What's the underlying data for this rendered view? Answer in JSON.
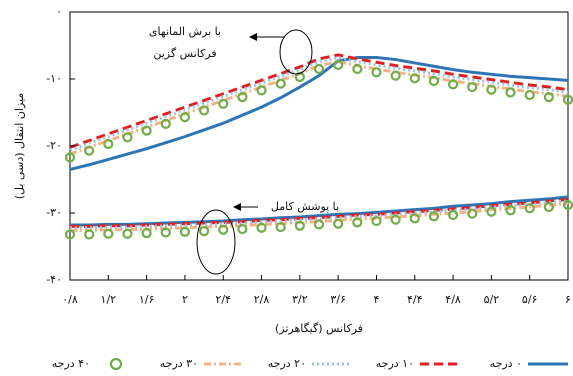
{
  "chart_data": {
    "type": "line",
    "xlabel": "فرکانس (گیگاهرتز)",
    "ylabel": "میزان انتقال (دسی بل)",
    "annotations": [
      "با برش المانهای",
      "فرکانس گزین",
      "با پوشش کامل"
    ],
    "x": [
      0.8,
      1.0,
      1.2,
      1.4,
      1.6,
      1.8,
      2.0,
      2.2,
      2.4,
      2.6,
      2.8,
      3.0,
      3.2,
      3.4,
      3.6,
      3.8,
      4.0,
      4.2,
      4.4,
      4.6,
      4.8,
      5.0,
      5.2,
      5.4,
      5.6,
      5.8,
      6.0
    ],
    "xlim": [
      0.8,
      6
    ],
    "xticks": [
      {
        "value": 0.8,
        "label": "۰/۸"
      },
      {
        "value": 1.2,
        "label": "۱/۲"
      },
      {
        "value": 1.6,
        "label": "۱/۶"
      },
      {
        "value": 2,
        "label": "۲"
      },
      {
        "value": 2.4,
        "label": "۲/۴"
      },
      {
        "value": 2.8,
        "label": "۲/۸"
      },
      {
        "value": 3.2,
        "label": "۳/۲"
      },
      {
        "value": 3.6,
        "label": "۳/۶"
      },
      {
        "value": 4,
        "label": "۴"
      },
      {
        "value": 4.4,
        "label": "۴/۴"
      },
      {
        "value": 4.8,
        "label": "۴/۸"
      },
      {
        "value": 5.2,
        "label": "۵/۲"
      },
      {
        "value": 5.6,
        "label": "۵/۶"
      },
      {
        "value": 6,
        "label": "۶"
      }
    ],
    "ylim": [
      -40,
      0
    ],
    "yticks": [
      {
        "value": 0,
        "label": "۰"
      },
      {
        "value": -10,
        "label": "-۱۰"
      },
      {
        "value": -20,
        "label": "-۲۰"
      },
      {
        "value": -30,
        "label": "-۳۰"
      },
      {
        "value": -40,
        "label": "-۴۰"
      }
    ],
    "series": [
      {
        "name": "۰ درجه",
        "color": "#2e75b6",
        "style": "solid",
        "values": [
          -23.5,
          -22.8,
          -22,
          -21.2,
          -20.4,
          -19.5,
          -18.6,
          -17.6,
          -16.6,
          -15.4,
          -14.2,
          -12.8,
          -11.2,
          -9.5,
          -7.3,
          -6.8,
          -6.8,
          -7.1,
          -7.6,
          -8.1,
          -8.6,
          -9.0,
          -9.3,
          -9.6,
          -9.8,
          -10.0,
          -10.2
        ],
        "full_values": [
          -31.8,
          -31.8,
          -31.7,
          -31.7,
          -31.6,
          -31.5,
          -31.4,
          -31.3,
          -31.2,
          -31.0,
          -30.9,
          -30.7,
          -30.6,
          -30.4,
          -30.2,
          -30.1,
          -29.9,
          -29.7,
          -29.5,
          -29.3,
          -29.0,
          -28.8,
          -28.6,
          -28.3,
          -28.1,
          -27.9,
          -27.6
        ]
      },
      {
        "name": "۱۰ درجه",
        "color": "#e02020",
        "style": "dashed",
        "values": [
          -20.2,
          -19.2,
          -18.2,
          -17.2,
          -16.2,
          -15.2,
          -14.2,
          -13.2,
          -12.2,
          -11.2,
          -10.2,
          -9.2,
          -8.2,
          -7.0,
          -6.4,
          -7.0,
          -7.5,
          -8.0,
          -8.4,
          -8.8,
          -9.3,
          -9.7,
          -10.1,
          -10.5,
          -10.9,
          -11.2,
          -11.6
        ],
        "full_values": [
          -32.0,
          -32.0,
          -31.9,
          -31.9,
          -31.8,
          -31.7,
          -31.6,
          -31.5,
          -31.4,
          -31.3,
          -31.1,
          -31.0,
          -30.8,
          -30.7,
          -30.5,
          -30.3,
          -30.2,
          -30.0,
          -29.8,
          -29.6,
          -29.4,
          -29.2,
          -28.9,
          -28.7,
          -28.5,
          -28.2,
          -28.0
        ]
      },
      {
        "name": "۲۰ درجه",
        "color": "#9dc3e6",
        "style": "dotted",
        "values": [
          -20.6,
          -19.6,
          -18.6,
          -17.6,
          -16.6,
          -15.6,
          -14.6,
          -13.6,
          -12.6,
          -11.6,
          -10.6,
          -9.6,
          -8.6,
          -7.4,
          -6.8,
          -7.4,
          -7.9,
          -8.4,
          -8.8,
          -9.2,
          -9.7,
          -10.1,
          -10.5,
          -10.9,
          -11.3,
          -11.6,
          -12.0
        ],
        "full_values": [
          -32.2,
          -32.2,
          -32.1,
          -32.1,
          -32.0,
          -31.9,
          -31.8,
          -31.7,
          -31.6,
          -31.5,
          -31.3,
          -31.2,
          -31.0,
          -30.9,
          -30.7,
          -30.5,
          -30.4,
          -30.2,
          -30.0,
          -29.8,
          -29.6,
          -29.4,
          -29.1,
          -28.9,
          -28.7,
          -28.4,
          -28.2
        ]
      },
      {
        "name": "۳۰ درجه",
        "color": "#f4b183",
        "style": "dashdot",
        "values": [
          -21.2,
          -20.2,
          -19.2,
          -18.2,
          -17.2,
          -16.2,
          -15.2,
          -14.2,
          -13.2,
          -12.2,
          -11.2,
          -10.2,
          -9.2,
          -8.0,
          -7.4,
          -8.0,
          -8.5,
          -9.0,
          -9.4,
          -9.8,
          -10.3,
          -10.7,
          -11.1,
          -11.5,
          -11.9,
          -12.2,
          -12.6
        ],
        "full_values": [
          -32.6,
          -32.6,
          -32.5,
          -32.5,
          -32.4,
          -32.3,
          -32.2,
          -32.1,
          -32.0,
          -31.9,
          -31.7,
          -31.6,
          -31.4,
          -31.3,
          -31.1,
          -30.9,
          -30.8,
          -30.6,
          -30.4,
          -30.2,
          -30.0,
          -29.8,
          -29.5,
          -29.3,
          -29.1,
          -28.8,
          -28.6
        ]
      },
      {
        "name": "۴۰ درجه",
        "color": "#70ad47",
        "style": "circles",
        "values": [
          -21.7,
          -20.7,
          -19.7,
          -18.7,
          -17.7,
          -16.7,
          -15.7,
          -14.7,
          -13.7,
          -12.7,
          -11.7,
          -10.7,
          -9.7,
          -8.5,
          -7.9,
          -8.5,
          -9.0,
          -9.5,
          -9.9,
          -10.3,
          -10.8,
          -11.2,
          -11.6,
          -12.0,
          -12.4,
          -12.7,
          -13.1
        ],
        "full_values": [
          -33.2,
          -33.2,
          -33.1,
          -33.1,
          -33.0,
          -32.9,
          -32.8,
          -32.7,
          -32.5,
          -32.4,
          -32.2,
          -32.1,
          -31.9,
          -31.7,
          -31.6,
          -31.4,
          -31.2,
          -31.0,
          -30.8,
          -30.5,
          -30.3,
          -30.1,
          -29.8,
          -29.6,
          -29.3,
          -29.1,
          -28.8
        ]
      }
    ]
  }
}
